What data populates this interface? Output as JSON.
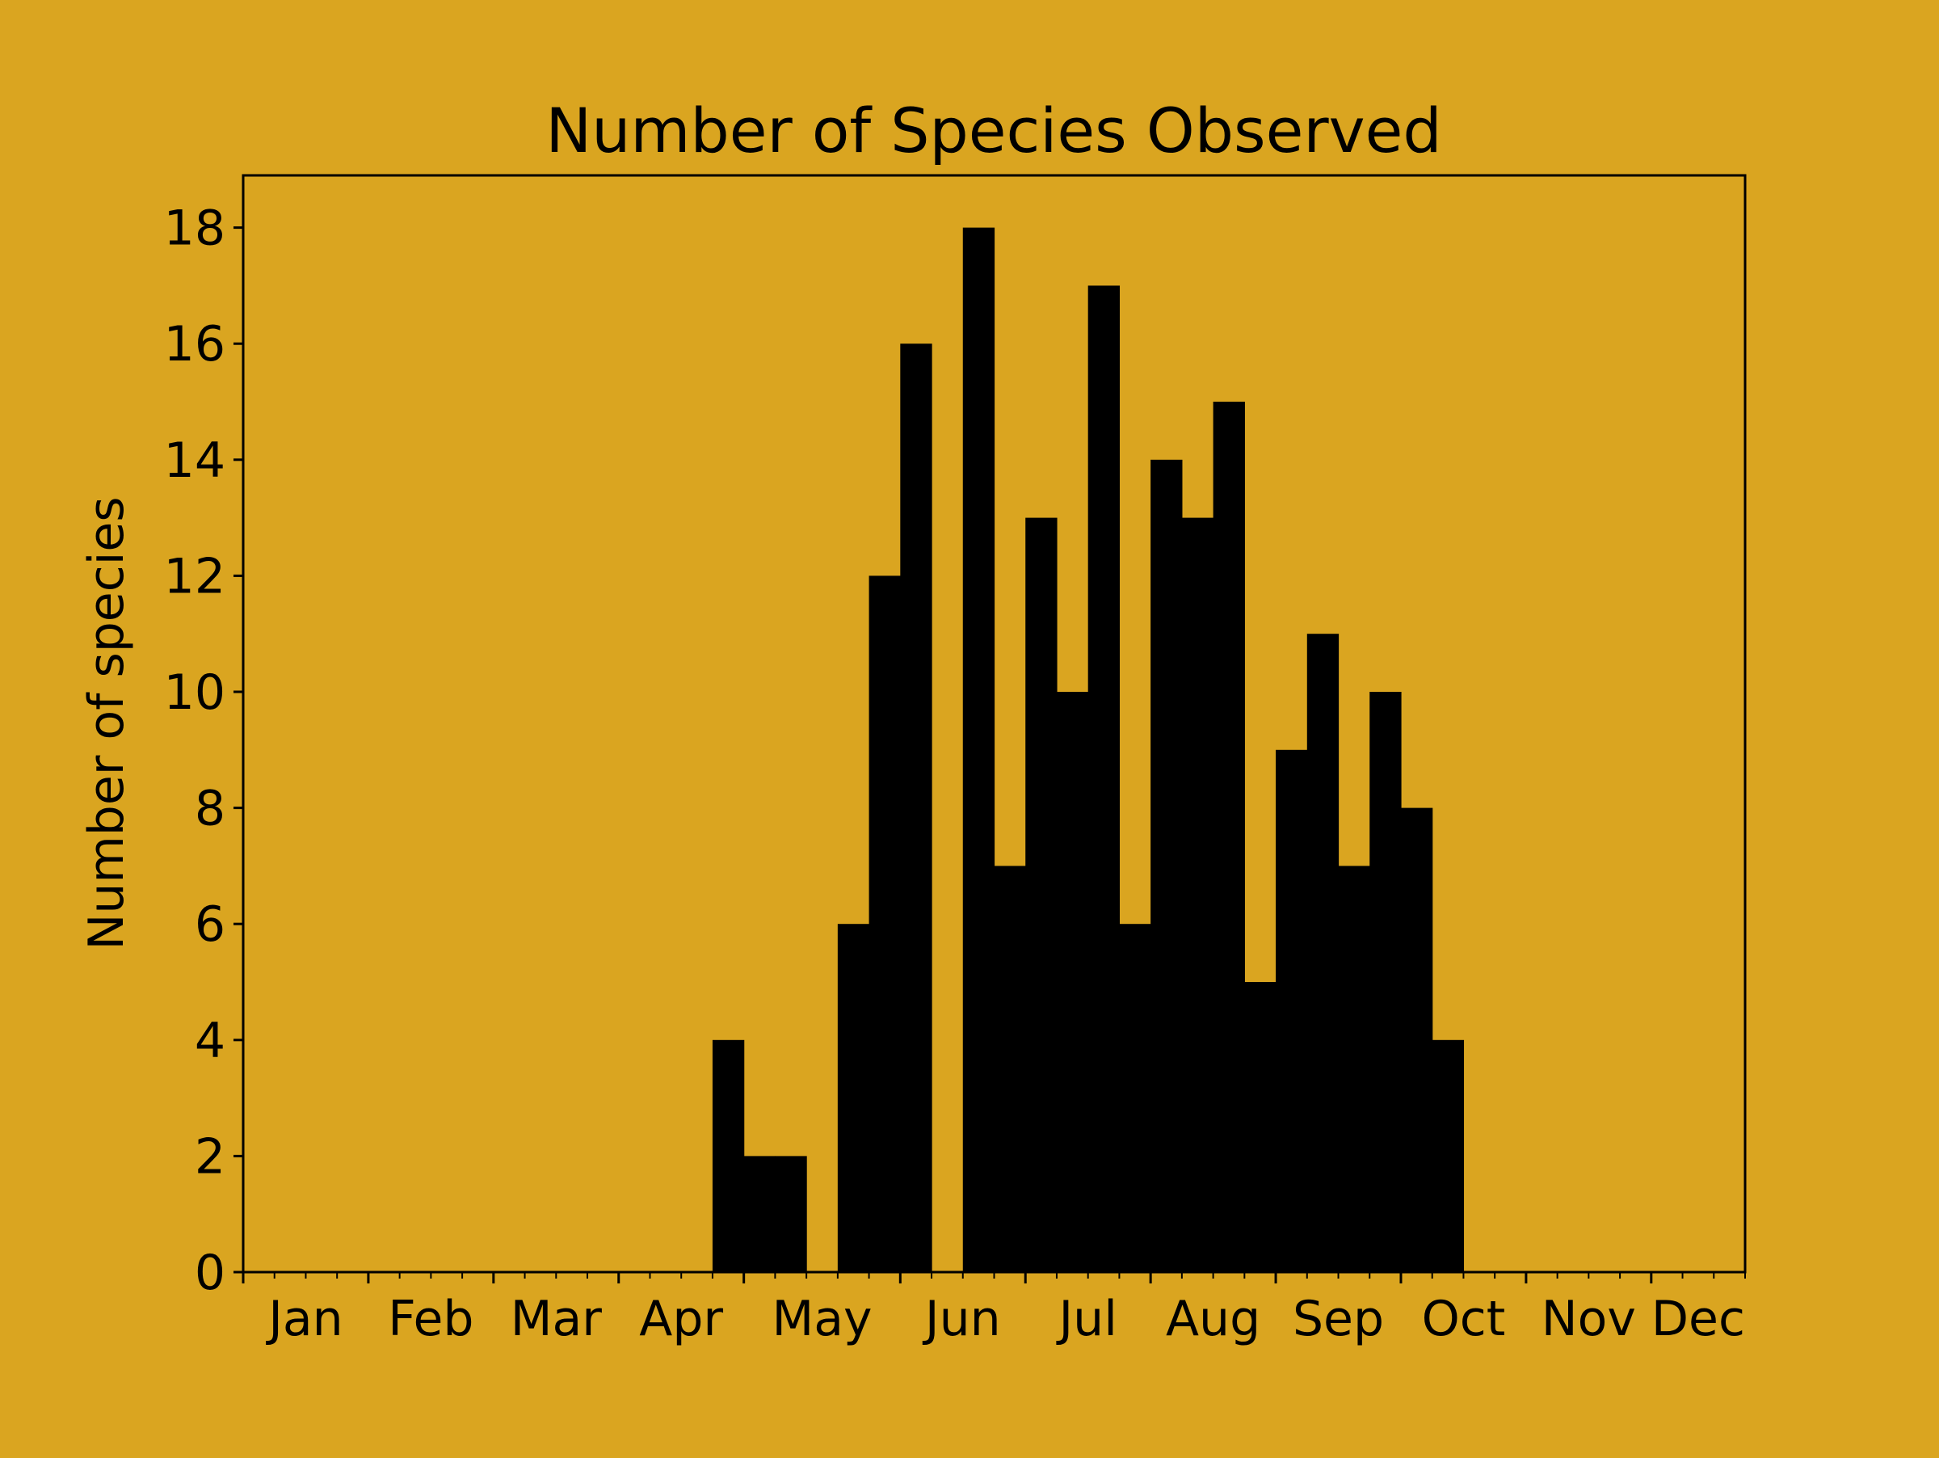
{
  "chart_data": {
    "type": "bar",
    "title": "Number of Species Observed",
    "xlabel": "",
    "ylabel": "Number of species",
    "x_unit": "week of year",
    "xlim": [
      1,
      49
    ],
    "ylim": [
      0,
      18.9
    ],
    "yticks": [
      0,
      2,
      4,
      6,
      8,
      10,
      12,
      14,
      16,
      18
    ],
    "month_ticks": [
      {
        "label": "Jan",
        "week": 1
      },
      {
        "label": "Feb",
        "week": 5
      },
      {
        "label": "Mar",
        "week": 9
      },
      {
        "label": "Apr",
        "week": 13
      },
      {
        "label": "May",
        "week": 17
      },
      {
        "label": "Jun",
        "week": 22
      },
      {
        "label": "Jul",
        "week": 26
      },
      {
        "label": "Aug",
        "week": 30
      },
      {
        "label": "Sep",
        "week": 34
      },
      {
        "label": "Oct",
        "week": 38
      },
      {
        "label": "Nov",
        "week": 42
      },
      {
        "label": "Dec",
        "week": 46
      }
    ],
    "bins": [
      {
        "week": 16,
        "value": 4
      },
      {
        "week": 17,
        "value": 2
      },
      {
        "week": 18,
        "value": 2
      },
      {
        "week": 19,
        "value": 0
      },
      {
        "week": 20,
        "value": 6
      },
      {
        "week": 21,
        "value": 12
      },
      {
        "week": 22,
        "value": 16
      },
      {
        "week": 23,
        "value": 0
      },
      {
        "week": 24,
        "value": 18
      },
      {
        "week": 25,
        "value": 7
      },
      {
        "week": 26,
        "value": 13
      },
      {
        "week": 27,
        "value": 10
      },
      {
        "week": 28,
        "value": 17
      },
      {
        "week": 29,
        "value": 6
      },
      {
        "week": 30,
        "value": 14
      },
      {
        "week": 31,
        "value": 13
      },
      {
        "week": 32,
        "value": 15
      },
      {
        "week": 33,
        "value": 5
      },
      {
        "week": 34,
        "value": 9
      },
      {
        "week": 35,
        "value": 11
      },
      {
        "week": 36,
        "value": 7
      },
      {
        "week": 37,
        "value": 10
      },
      {
        "week": 38,
        "value": 8
      },
      {
        "week": 39,
        "value": 4
      }
    ],
    "grid": false,
    "legend": "none",
    "colors": {
      "background": "#DAA520",
      "bar": "#000000",
      "axes": "#000000"
    }
  }
}
